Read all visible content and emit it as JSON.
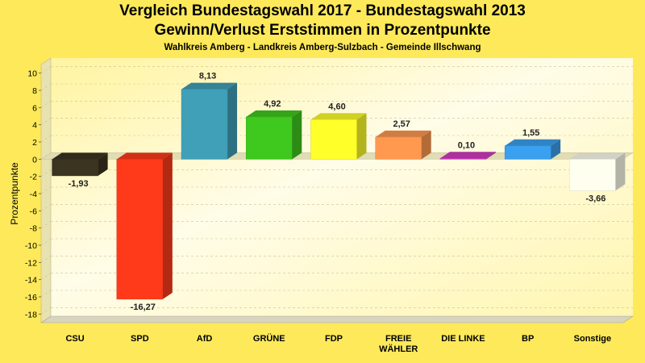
{
  "chart_data": {
    "type": "bar",
    "title": "Vergleich Bundestagswahl 2017 - Bundestagswahl 2013",
    "subtitle": "Gewinn/Verlust Erststimmen in Prozentpunkte",
    "caption": "Wahlkreis Amberg - Landkreis Amberg-Sulzbach - Gemeinde Illschwang",
    "xlabel": "",
    "ylabel": "Prozentpunkte",
    "ylim": [
      -19,
      11
    ],
    "yticks": [
      10,
      8,
      6,
      4,
      2,
      0,
      -2,
      -4,
      -6,
      -8,
      -10,
      -12,
      -14,
      -16,
      -18
    ],
    "grid": true,
    "categories": [
      "CSU",
      "SPD",
      "AfD",
      "GRÜNE",
      "FDP",
      "FREIE WÄHLER",
      "DIE LINKE",
      "BP",
      "Sonstige"
    ],
    "category_lines": [
      [
        "CSU"
      ],
      [
        "SPD"
      ],
      [
        "AfD"
      ],
      [
        "GRÜNE"
      ],
      [
        "FDP"
      ],
      [
        "FREIE",
        "WÄHLER"
      ],
      [
        "DIE LINKE"
      ],
      [
        "BP"
      ],
      [
        "Sonstige"
      ]
    ],
    "values": [
      -1.93,
      -16.27,
      8.13,
      4.92,
      4.6,
      2.57,
      0.1,
      1.55,
      -3.66
    ],
    "value_labels": [
      "-1,93",
      "-16,27",
      "8,13",
      "4,92",
      "4,60",
      "2,57",
      "0,10",
      "1,55",
      "-3,66"
    ],
    "colors": [
      "#3a3420",
      "#ff3a1a",
      "#3fa0b8",
      "#3fc81e",
      "#ffff2a",
      "#ff9950",
      "#d03cc0",
      "#3aa0f0",
      "#fffff0"
    ]
  }
}
